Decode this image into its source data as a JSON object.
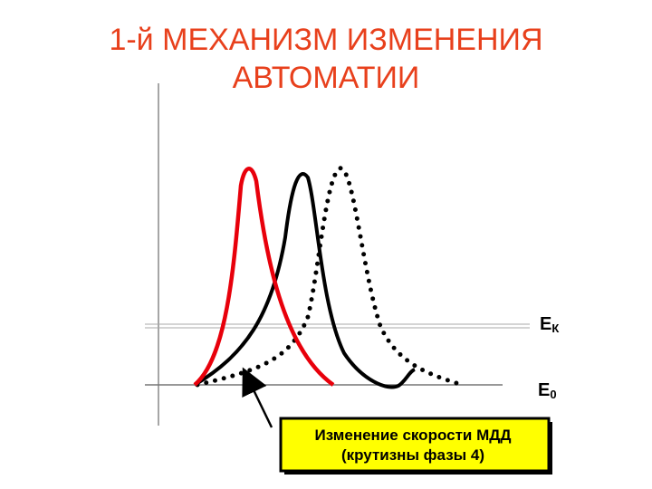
{
  "header": {
    "title_lines": [
      "1-й МЕХАНИЗМ ИЗМЕНЕНИЯ",
      "АВТОМАТИИ"
    ]
  },
  "labels": {
    "ek": {
      "main": "E",
      "sub": "К"
    },
    "e0": {
      "main": "E",
      "sub": "0"
    }
  },
  "callout": {
    "lines": [
      "Изменение скорости МДД",
      "(крутизны фазы 4)"
    ]
  }
}
